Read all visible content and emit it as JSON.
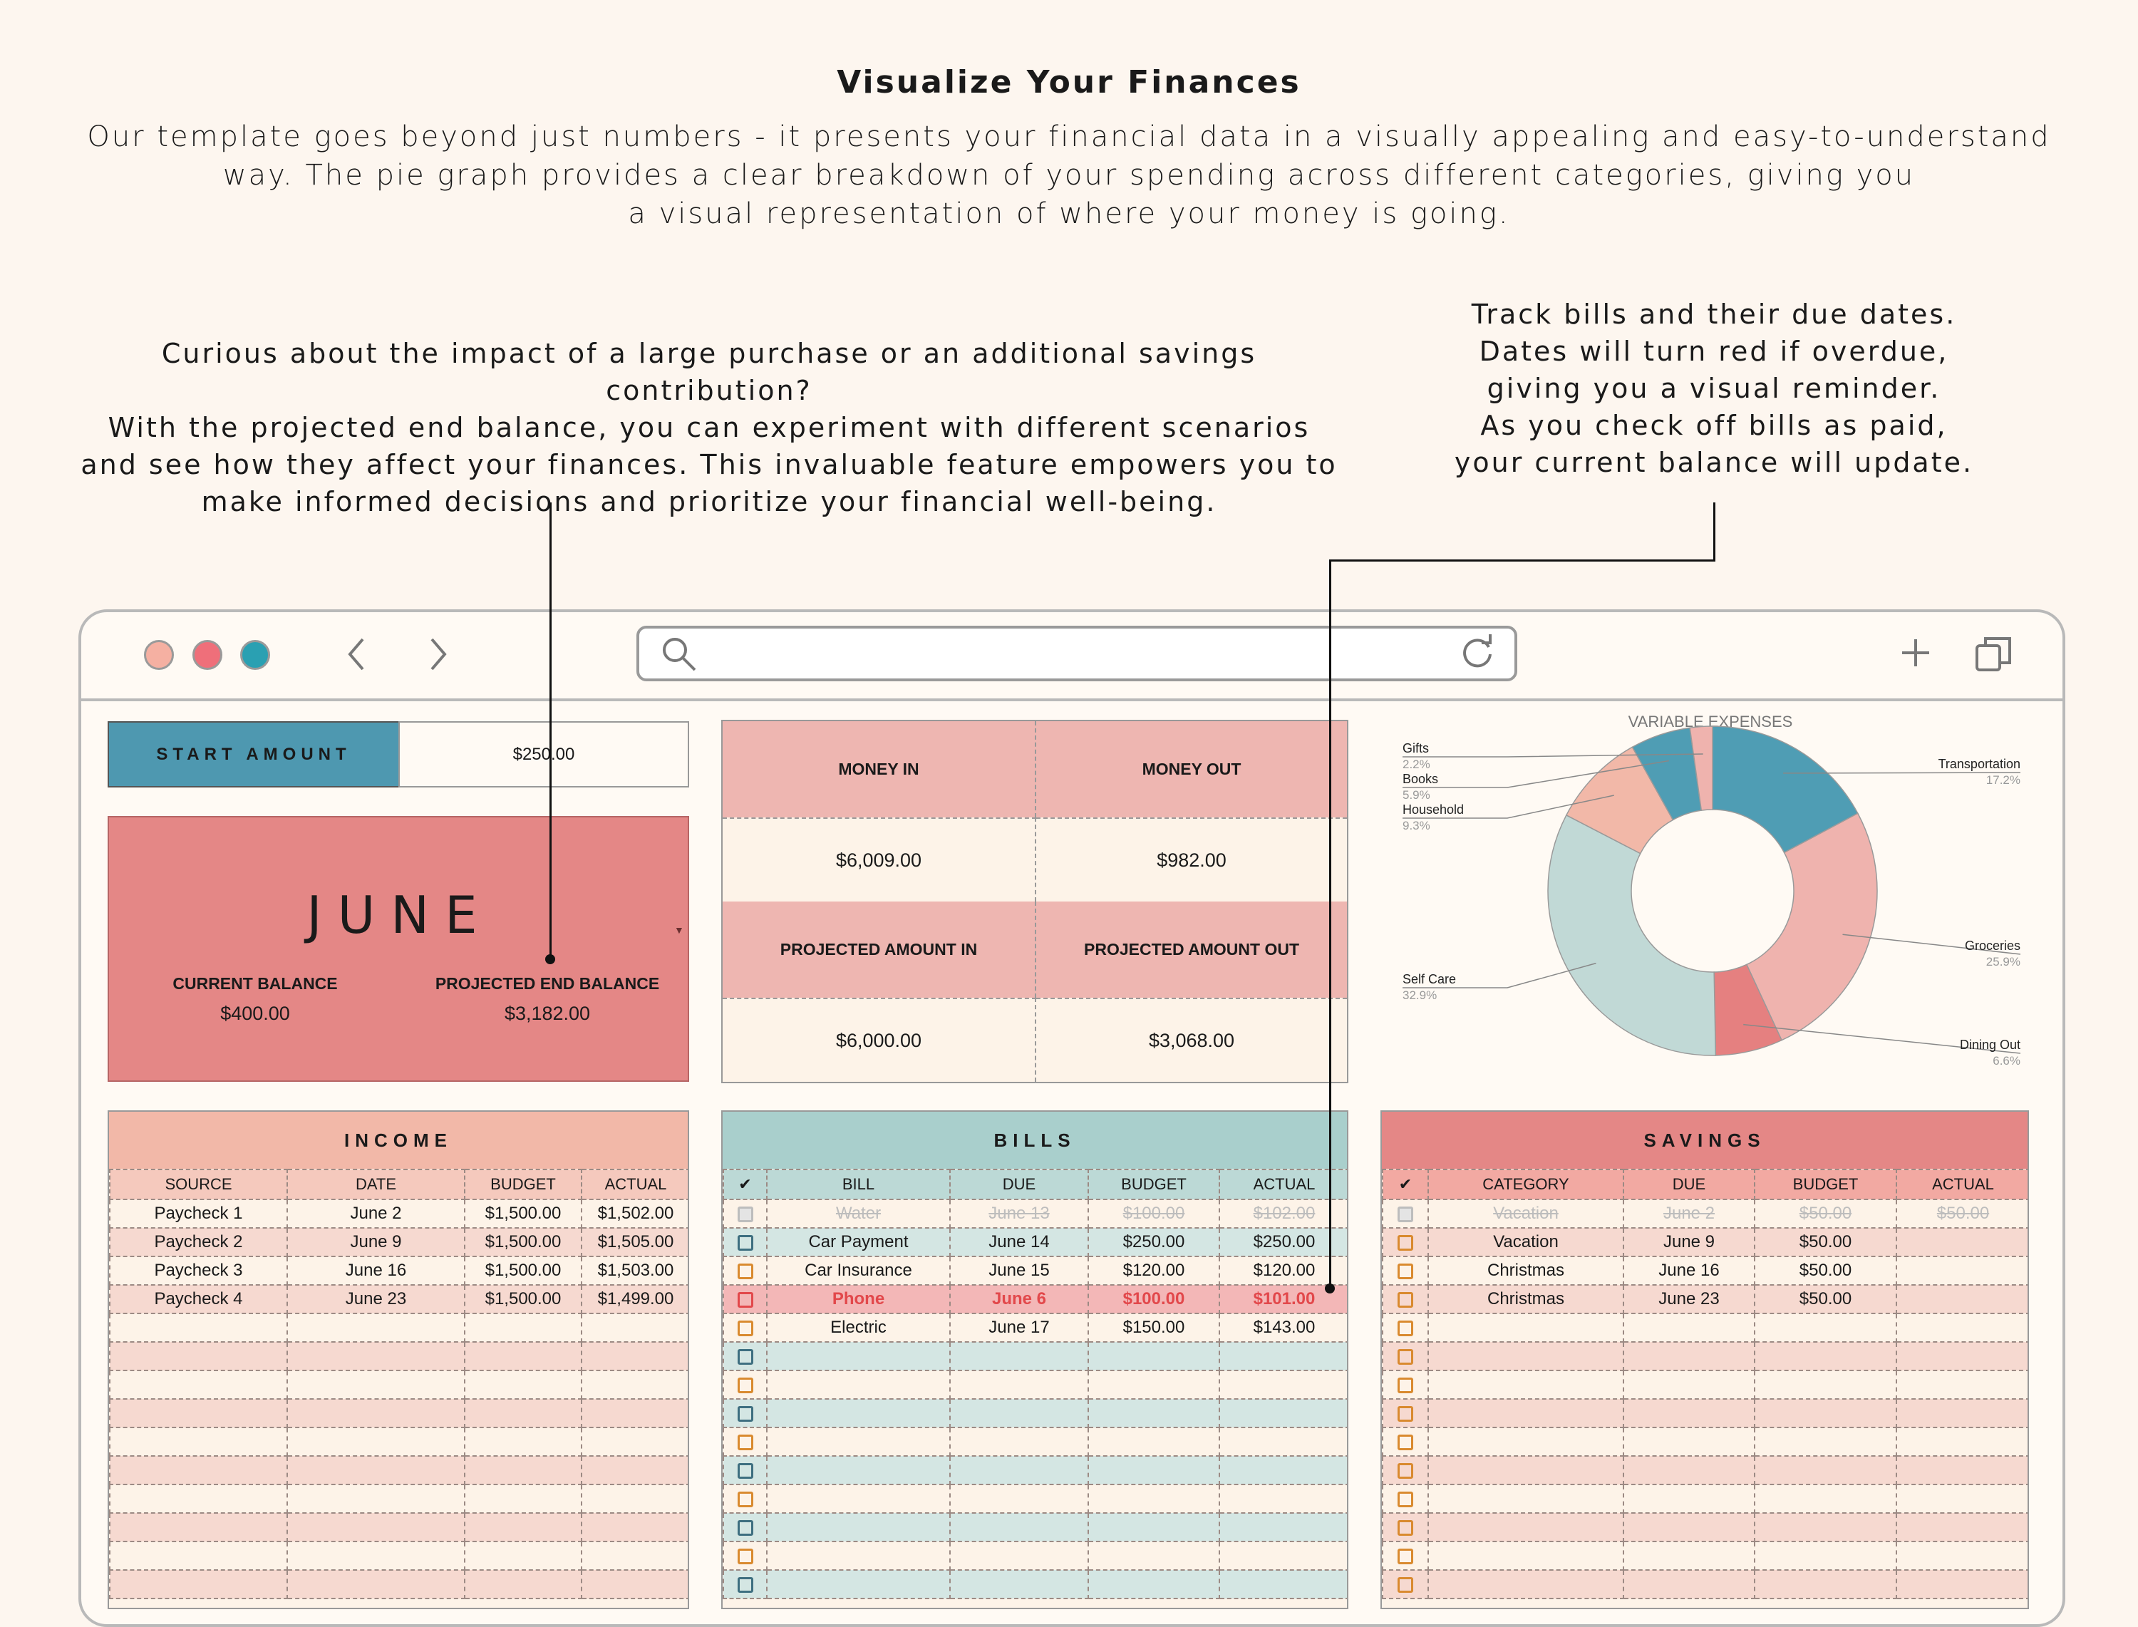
{
  "heading": "Visualize Your Finances",
  "intro_lines": [
    "Our template goes beyond just numbers - it presents your financial data in a visually appealing and easy-to-understand",
    "way. The pie graph provides a clear breakdown of your spending across different categories, giving you",
    "a visual representation of where your money is going."
  ],
  "note_left": [
    "Curious about the impact of a large purchase or an additional savings contribution?",
    "With the projected end balance, you can experiment with different scenarios",
    "and see how they affect your finances. This invaluable feature empowers you to",
    "make informed decisions and prioritize your financial well-being."
  ],
  "note_right": [
    "Track bills and their due dates.",
    "Dates will turn red if overdue,",
    "giving you a visual reminder.",
    "As you check off bills as paid,",
    "your current balance will update."
  ],
  "browser": {
    "traffic_colors": [
      "#f5b0a2",
      "#ef6f7a",
      "#2aa0b2"
    ],
    "icons": {
      "back": "chevron-left-icon",
      "forward": "chevron-right-icon",
      "search": "search-icon",
      "reload": "reload-icon",
      "add": "plus-icon",
      "tabs": "copy-icon"
    }
  },
  "start_amount": {
    "label": "START AMOUNT",
    "value": "$250.00"
  },
  "month_card": {
    "month": "JUNE",
    "current_balance_label": "CURRENT BALANCE",
    "current_balance": "$400.00",
    "projected_label": "PROJECTED END BALANCE",
    "projected_value": "$3,182.00"
  },
  "summary": {
    "money_in_label": "MONEY IN",
    "money_out_label": "MONEY OUT",
    "money_in": "$6,009.00",
    "money_out": "$982.00",
    "projected_in_label": "PROJECTED AMOUNT IN",
    "projected_out_label": "PROJECTED AMOUNT OUT",
    "projected_in": "$6,000.00",
    "projected_out": "$3,068.00"
  },
  "income": {
    "title": "INCOME",
    "columns": [
      "SOURCE",
      "DATE",
      "BUDGET",
      "ACTUAL"
    ],
    "rows": [
      [
        "Paycheck 1",
        "June 2",
        "$1,500.00",
        "$1,502.00"
      ],
      [
        "Paycheck 2",
        "June 9",
        "$1,500.00",
        "$1,505.00"
      ],
      [
        "Paycheck 3",
        "June 16",
        "$1,500.00",
        "$1,503.00"
      ],
      [
        "Paycheck 4",
        "June 23",
        "$1,500.00",
        "$1,499.00"
      ]
    ]
  },
  "bills": {
    "title": "BILLS",
    "check_header": "✔",
    "columns": [
      "BILL",
      "DUE",
      "BUDGET",
      "ACTUAL"
    ],
    "rows": [
      {
        "cells": [
          "Water",
          "June 13",
          "$100.00",
          "$102.00"
        ],
        "paid": true,
        "overdue": false
      },
      {
        "cells": [
          "Car Payment",
          "June 14",
          "$250.00",
          "$250.00"
        ],
        "paid": false,
        "overdue": false
      },
      {
        "cells": [
          "Car Insurance",
          "June 15",
          "$120.00",
          "$120.00"
        ],
        "paid": false,
        "overdue": false
      },
      {
        "cells": [
          "Phone",
          "June 6",
          "$100.00",
          "$101.00"
        ],
        "paid": false,
        "overdue": true
      },
      {
        "cells": [
          "Electric",
          "June 17",
          "$150.00",
          "$143.00"
        ],
        "paid": false,
        "overdue": false
      }
    ]
  },
  "savings": {
    "title": "SAVINGS",
    "check_header": "✔",
    "columns": [
      "CATEGORY",
      "DUE",
      "BUDGET",
      "ACTUAL"
    ],
    "rows": [
      {
        "cells": [
          "Vacation",
          "June 2",
          "$50.00",
          "$50.00"
        ],
        "paid": true
      },
      {
        "cells": [
          "Vacation",
          "June 9",
          "$50.00",
          ""
        ],
        "paid": false
      },
      {
        "cells": [
          "Christmas",
          "June 16",
          "$50.00",
          ""
        ],
        "paid": false
      },
      {
        "cells": [
          "Christmas",
          "June 23",
          "$50.00",
          ""
        ],
        "paid": false
      }
    ]
  },
  "chart_data": {
    "type": "pie",
    "title": "VARIABLE EXPENSES",
    "categories": [
      "Transportation",
      "Groceries",
      "Dining Out",
      "Self Care",
      "Household",
      "Books",
      "Gifts"
    ],
    "values": [
      17.2,
      25.9,
      6.6,
      32.9,
      9.3,
      5.9,
      2.2
    ],
    "labels": [
      "17.2%",
      "25.9%",
      "6.6%",
      "32.9%",
      "9.3%",
      "5.9%",
      "2.2%"
    ],
    "colors": [
      "#4f9db4",
      "#efb3ae",
      "#e58080",
      "#c1d9d6",
      "#f2b8a8",
      "#4f9db4",
      "#efb3ae"
    ],
    "donut": true
  }
}
